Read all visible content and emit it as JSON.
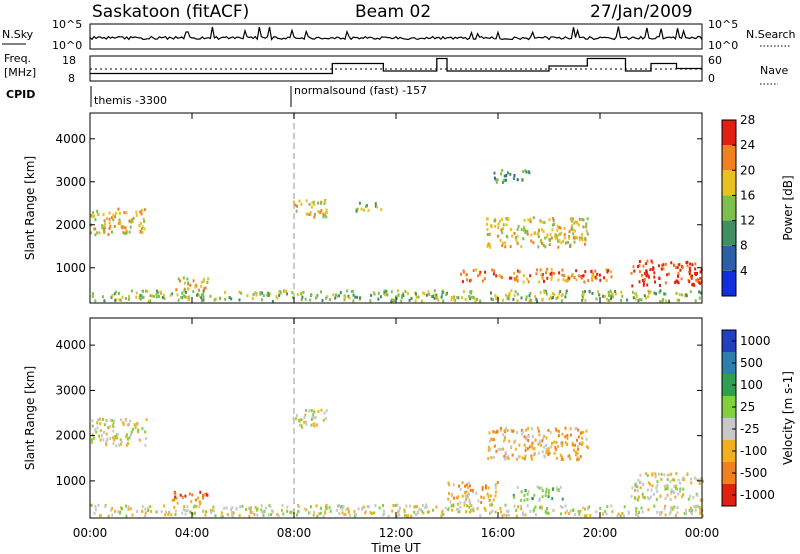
{
  "header": {
    "title": "Saskatoon (fitACF)",
    "beam": "Beam 02",
    "date": "27/Jan/2009"
  },
  "strip_labels": {
    "nsky": "N.Sky",
    "nsky_top": "10^5",
    "nsky_bottom": "10^0",
    "nsearch": "N.Search",
    "nsearch_top": "10^5",
    "nsearch_bottom": "10^0",
    "freq_line1": "Freq.",
    "freq_line2": "[MHz]",
    "freq_top": "18",
    "freq_bottom": "8",
    "nave": "Nave",
    "nave_top": "60",
    "nave_bottom": "0",
    "cpid": "CPID",
    "cpid1": "themis -3300",
    "cpid2": "normalsound (fast) -157"
  },
  "chart_data": [
    {
      "type": "heatmap",
      "name": "power",
      "ylabel": "Slant Range [km]",
      "ylim": [
        180,
        4600
      ],
      "yticks": [
        "1000",
        "2000",
        "3000",
        "4000"
      ],
      "ytick_values": [
        1000,
        2000,
        3000,
        4000
      ],
      "colorbar_label": "Power [dB]",
      "colorbar_ticks": [
        "4",
        "8",
        "12",
        "16",
        "20",
        "24",
        "28"
      ],
      "colorbar_values": [
        4,
        8,
        12,
        16,
        20,
        24,
        28
      ],
      "colorbar_colors": [
        "#1030e0",
        "#2d5fa6",
        "#3f8f60",
        "#7fbf50",
        "#e8c020",
        "#f08020",
        "#e02010"
      ],
      "patches": [
        {
          "t0": 0.0,
          "t1": 2.2,
          "r0": 1800,
          "r1": 2400,
          "level": 4
        },
        {
          "t0": 3.2,
          "t1": 4.6,
          "r0": 500,
          "r1": 800,
          "level": 4
        },
        {
          "t0": 7.9,
          "t1": 9.3,
          "r0": 2200,
          "r1": 2600,
          "level": 4
        },
        {
          "t0": 10.4,
          "t1": 11.6,
          "r0": 2350,
          "r1": 2550,
          "level": 3
        },
        {
          "t0": 15.5,
          "t1": 19.5,
          "r0": 1500,
          "r1": 2200,
          "level": 4
        },
        {
          "t0": 14.5,
          "t1": 20.5,
          "r0": 700,
          "r1": 1000,
          "level": 5
        },
        {
          "t0": 15.8,
          "t1": 17.2,
          "r0": 3000,
          "r1": 3300,
          "level": 2
        },
        {
          "t0": 21.2,
          "t1": 24.0,
          "r0": 600,
          "r1": 1200,
          "level": 6
        },
        {
          "t0": 0.0,
          "t1": 24.0,
          "r0": 250,
          "r1": 500,
          "level": 3
        }
      ]
    },
    {
      "type": "heatmap",
      "name": "velocity",
      "ylabel": "Slant Range [km]",
      "xlabel": "Time UT",
      "ylim": [
        180,
        4600
      ],
      "yticks": [
        "1000",
        "2000",
        "3000",
        "4000"
      ],
      "ytick_values": [
        1000,
        2000,
        3000,
        4000
      ],
      "xticks": [
        "00:00",
        "04:00",
        "08:00",
        "12:00",
        "16:00",
        "20:00",
        "00:00"
      ],
      "xtick_values": [
        0,
        4,
        8,
        12,
        16,
        20,
        24
      ],
      "colorbar_label": "Velocity [m s-1]",
      "colorbar_ticks": [
        "1000",
        "500",
        "100",
        "25",
        "-25",
        "-100",
        "-500",
        "-1000"
      ],
      "colorbar_values": [
        1000,
        500,
        100,
        25,
        -25,
        -100,
        -500,
        -1000
      ],
      "colorbar_colors": [
        "#2040c0",
        "#2e7fb0",
        "#30a050",
        "#80d040",
        "#c8c8c8",
        "#f0b020",
        "#f08020",
        "#e02010"
      ],
      "patches": [
        {
          "t0": 0.0,
          "t1": 2.2,
          "r0": 1800,
          "r1": 2400,
          "level": 4
        },
        {
          "t0": 3.2,
          "t1": 4.6,
          "r0": 500,
          "r1": 800,
          "level": 6
        },
        {
          "t0": 7.9,
          "t1": 9.3,
          "r0": 2200,
          "r1": 2600,
          "level": 4
        },
        {
          "t0": 15.5,
          "t1": 19.5,
          "r0": 1500,
          "r1": 2200,
          "level": 5
        },
        {
          "t0": 14.0,
          "t1": 16.0,
          "r0": 500,
          "r1": 1000,
          "level": 5
        },
        {
          "t0": 16.5,
          "t1": 18.5,
          "r0": 600,
          "r1": 900,
          "level": 3
        },
        {
          "t0": 21.2,
          "t1": 24.0,
          "r0": 600,
          "r1": 1200,
          "level": 4
        },
        {
          "t0": 0.0,
          "t1": 24.0,
          "r0": 250,
          "r1": 500,
          "level": 4
        }
      ]
    }
  ],
  "freq_steps": [
    {
      "t0": 0.0,
      "t1": 9.5,
      "value": 11
    },
    {
      "t0": 9.5,
      "t1": 11.5,
      "value": 15
    },
    {
      "t0": 11.5,
      "t1": 13.6,
      "value": 12
    },
    {
      "t0": 13.6,
      "t1": 14.0,
      "value": 17
    },
    {
      "t0": 14.0,
      "t1": 18.0,
      "value": 12
    },
    {
      "t0": 18.0,
      "t1": 19.5,
      "value": 14
    },
    {
      "t0": 19.5,
      "t1": 21.0,
      "value": 17
    },
    {
      "t0": 21.0,
      "t1": 22.0,
      "value": 12
    },
    {
      "t0": 22.0,
      "t1": 23.0,
      "value": 15
    },
    {
      "t0": 23.0,
      "t1": 24.0,
      "value": 13
    }
  ]
}
